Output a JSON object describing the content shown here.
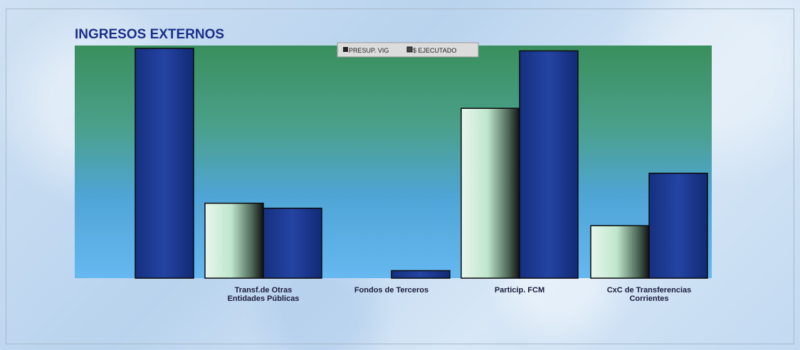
{
  "chart_data": {
    "type": "bar",
    "title": "INGRESOS EXTERNOS",
    "categories": [
      "",
      "Transf.de Otras Entidades Públicas",
      "Fondos de Terceros",
      "Particip. FCM",
      "CxC de Transferencias Corrientes"
    ],
    "series": [
      {
        "name": "PRESUP. VIG",
        "color": "#bfe6cd",
        "values": [
          0,
          30,
          0,
          68,
          21
        ]
      },
      {
        "name": "$ EJECUTADO",
        "color": "#1f3d99",
        "values": [
          92,
          28,
          3,
          91,
          42
        ]
      }
    ],
    "ylim": [
      0,
      92
    ],
    "legend_position": "top-center",
    "grid": false,
    "plot_background": "green-to-blue gradient"
  }
}
